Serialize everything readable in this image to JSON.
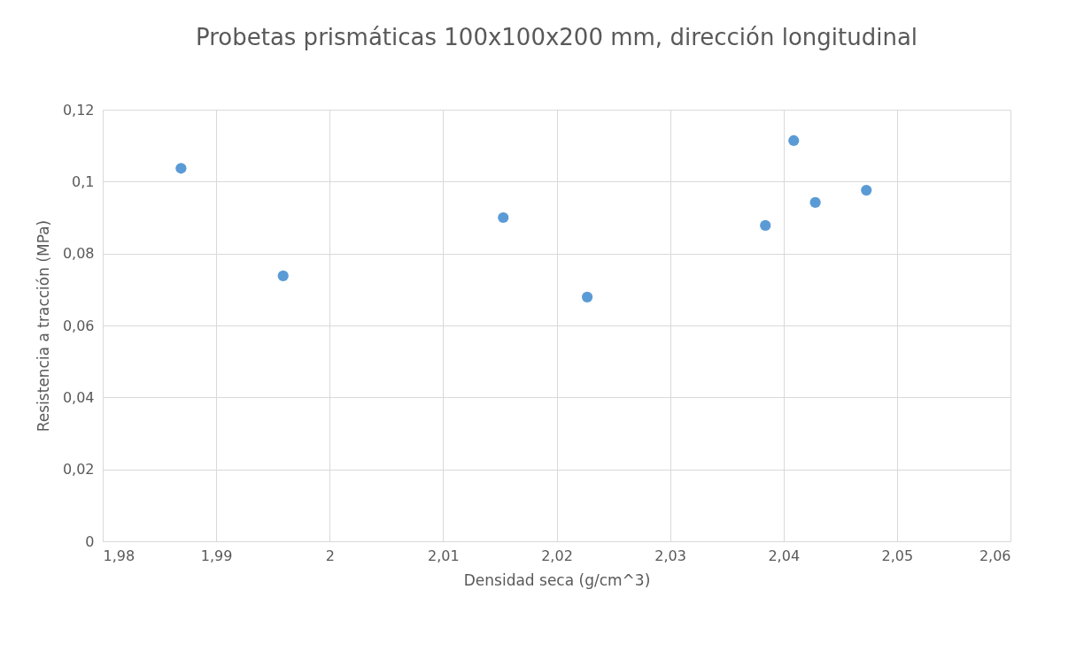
{
  "chart_data": {
    "type": "scatter",
    "title": "Probetas prismáticas 100x100x200 mm, dirección longitudinal",
    "xlabel": "Densidad seca (g/cm^3)",
    "ylabel": "Resistencia a tracción (MPa)",
    "x": [
      1.9869,
      1.9959,
      2.0153,
      2.0227,
      2.0384,
      2.0409,
      2.0428,
      2.0473
    ],
    "series": [
      {
        "color": "#5b9bd5",
        "values": [
          0.1037,
          0.0738,
          0.09,
          0.0679,
          0.0878,
          0.1114,
          0.0942,
          0.0976
        ]
      }
    ],
    "xlim": [
      1.98,
      2.06
    ],
    "xticks": [
      {
        "value": 1.98,
        "label": "1,98"
      },
      {
        "value": 1.99,
        "label": "1,99"
      },
      2,
      {
        "value": 2.01,
        "label": "2,01"
      },
      {
        "value": 2.02,
        "label": "2,02"
      },
      {
        "value": 2.03,
        "label": "2,03"
      },
      {
        "value": 2.04,
        "label": "2,04"
      },
      {
        "value": 2.05,
        "label": "2,05"
      },
      {
        "value": 2.06,
        "label": "2,06"
      }
    ],
    "ylim": [
      0,
      0.12
    ],
    "yticks": [
      0,
      {
        "value": 0.02,
        "label": "0,02"
      },
      {
        "value": 0.04,
        "label": "0,04"
      },
      {
        "value": 0.06,
        "label": "0,06"
      },
      {
        "value": 0.08,
        "label": "0,08"
      },
      {
        "value": 0.1,
        "label": "0,1"
      },
      {
        "value": 0.12,
        "label": "0,12"
      }
    ],
    "grid": true,
    "marker": "circle",
    "legend": false
  }
}
